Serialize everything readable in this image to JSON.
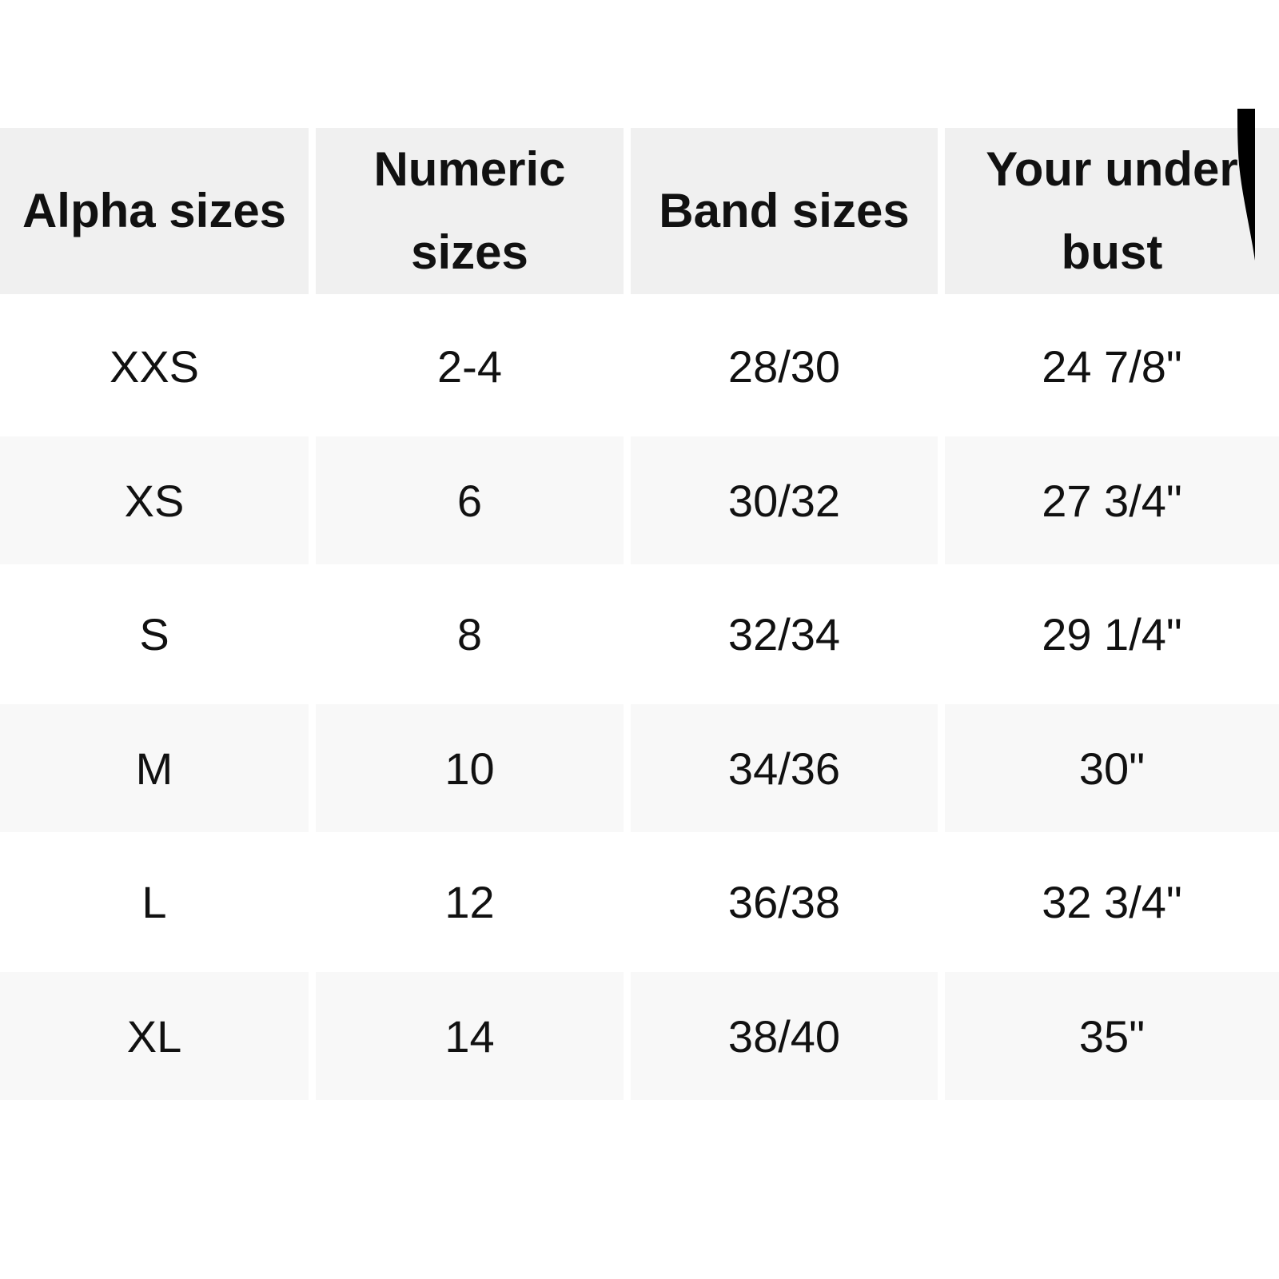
{
  "table": {
    "headers": [
      "Alpha sizes",
      "Numeric sizes",
      "Band sizes",
      "Your under bust"
    ],
    "rows": [
      [
        "XXS",
        "2-4",
        "28/30",
        "24 7/8\""
      ],
      [
        "XS",
        "6",
        "30/32",
        "27 3/4\""
      ],
      [
        "S",
        "8",
        "32/34",
        "29 1/4\""
      ],
      [
        "M",
        "10",
        "34/36",
        "30\""
      ],
      [
        "L",
        "12",
        "36/38",
        "32 3/4\""
      ],
      [
        "XL",
        "14",
        "38/40",
        "35\""
      ]
    ]
  },
  "colors": {
    "header_bg": "#f0f0f0",
    "stripe_bg": "#f8f8f8",
    "text": "#111111"
  }
}
